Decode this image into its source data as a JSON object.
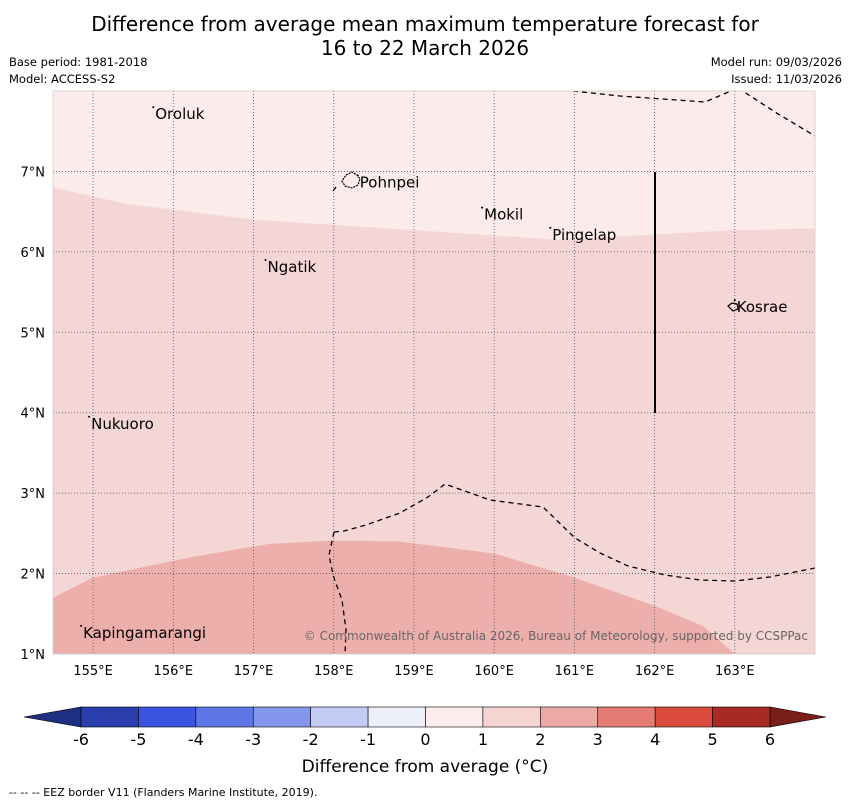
{
  "header": {
    "title_line1": "Difference from average mean maximum temperature forecast for",
    "title_line2": "16 to 22 March 2026",
    "base_period": "Base period: 1981-2018",
    "model": "Model: ACCESS-S2",
    "model_run": "Model run: 09/03/2026",
    "issued": "Issued: 11/03/2026"
  },
  "map": {
    "lon_range": [
      154.5,
      164.0
    ],
    "lat_range": [
      1.0,
      8.0
    ],
    "lon_ticks": [
      {
        "value": 155,
        "label": "155°E"
      },
      {
        "value": 156,
        "label": "156°E"
      },
      {
        "value": 157,
        "label": "157°E"
      },
      {
        "value": 158,
        "label": "158°E"
      },
      {
        "value": 159,
        "label": "159°E"
      },
      {
        "value": 160,
        "label": "160°E"
      },
      {
        "value": 161,
        "label": "161°E"
      },
      {
        "value": 162,
        "label": "162°E"
      },
      {
        "value": 163,
        "label": "163°E"
      }
    ],
    "lat_ticks": [
      {
        "value": 1,
        "label": "1°N"
      },
      {
        "value": 2,
        "label": "2°N"
      },
      {
        "value": 3,
        "label": "3°N"
      },
      {
        "value": 4,
        "label": "4°N"
      },
      {
        "value": 5,
        "label": "5°N"
      },
      {
        "value": 6,
        "label": "6°N"
      },
      {
        "value": 7,
        "label": "7°N"
      }
    ],
    "places": [
      {
        "name": "Oroluk",
        "lon": 155.75,
        "lat": 7.7
      },
      {
        "name": "Pohnpei",
        "lon": 158.3,
        "lat": 6.85
      },
      {
        "name": "Mokil",
        "lon": 159.85,
        "lat": 6.45
      },
      {
        "name": "Pingelap",
        "lon": 160.7,
        "lat": 6.2
      },
      {
        "name": "Ngatik",
        "lon": 157.15,
        "lat": 5.8
      },
      {
        "name": "Kosrae",
        "lon": 163.0,
        "lat": 5.3
      },
      {
        "name": "Nukuoro",
        "lon": 154.95,
        "lat": 3.85
      },
      {
        "name": "Kapingamarangi",
        "lon": 154.85,
        "lat": 1.25
      }
    ],
    "zones": [
      {
        "band": "0 to 1",
        "color": "#fbebea",
        "boundary": [
          [
            154.5,
            6.8
          ],
          [
            155.4,
            6.6
          ],
          [
            157.0,
            6.4
          ],
          [
            159.0,
            6.27
          ],
          [
            160.8,
            6.15
          ],
          [
            163.0,
            6.27
          ],
          [
            164.0,
            6.29
          ]
        ]
      },
      {
        "band": "1 to 2",
        "color": "#f4d6d4"
      },
      {
        "band": "2 to 3",
        "color": "#edafab",
        "boundary": [
          [
            154.5,
            1.7
          ],
          [
            155.0,
            1.95
          ],
          [
            156.2,
            2.2
          ],
          [
            157.2,
            2.37
          ],
          [
            158.0,
            2.41
          ],
          [
            158.8,
            2.4
          ],
          [
            160.0,
            2.25
          ],
          [
            161.0,
            1.95
          ],
          [
            162.0,
            1.6
          ],
          [
            162.6,
            1.35
          ],
          [
            163.0,
            1.0
          ]
        ]
      }
    ],
    "copyright": "© Commonwealth of Australia 2026, Bureau of Meteorology, supported by CCSPPac"
  },
  "colorbar": {
    "title": "Difference from average (°C)",
    "ticks": [
      "-6",
      "-5",
      "-4",
      "-3",
      "-2",
      "-1",
      "0",
      "1",
      "2",
      "3",
      "4",
      "5",
      "6"
    ],
    "colors": [
      "#2a3fad",
      "#3b55e0",
      "#5f77e6",
      "#8597ec",
      "#c4cbf4",
      "#eceefa",
      "#fceceb",
      "#f5d4d2",
      "#ecaaa5",
      "#e57c74",
      "#db4b3e",
      "#a92a25"
    ],
    "under_color": "#1e2e80",
    "over_color": "#7a1e1a"
  },
  "footer": {
    "note": "-- -- -- EEZ border V11 (Flanders Marine Institute, 2019)."
  }
}
